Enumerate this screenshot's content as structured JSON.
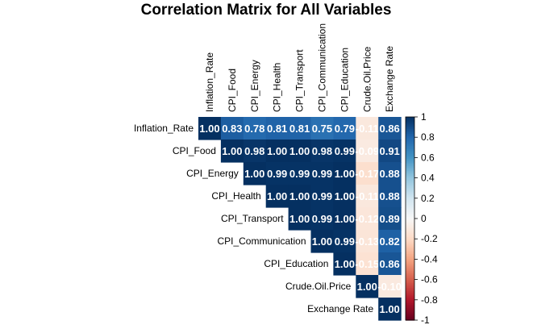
{
  "chart_data": {
    "type": "heatmap",
    "title": "Correlation Matrix for All Variables",
    "variables": [
      "Inflation_Rate",
      "CPI_Food",
      "CPI_Energy",
      "CPI_Health",
      "CPI_Transport",
      "CPI_Communication",
      "CPI_Education",
      "Crude.Oil.Price",
      "Exchange Rate"
    ],
    "col_labels": [
      "Inflation_Rate",
      "CPI_Food",
      "CPI_Energy",
      "CPI_Health",
      "CPI_Transport",
      "CPI_Communication",
      "CPI_Education",
      "Crude.Oil.Price",
      "Exchange Rate"
    ],
    "triangle": "upper",
    "values": [
      [
        1.0,
        0.83,
        0.78,
        0.81,
        0.81,
        0.75,
        0.79,
        -0.11,
        0.86
      ],
      [
        null,
        1.0,
        0.98,
        1.0,
        1.0,
        0.98,
        0.99,
        -0.09,
        0.91
      ],
      [
        null,
        null,
        1.0,
        0.99,
        0.99,
        0.99,
        1.0,
        -0.17,
        0.88
      ],
      [
        null,
        null,
        null,
        1.0,
        1.0,
        0.99,
        1.0,
        -0.11,
        0.88
      ],
      [
        null,
        null,
        null,
        null,
        1.0,
        0.99,
        1.0,
        -0.12,
        0.89
      ],
      [
        null,
        null,
        null,
        null,
        null,
        1.0,
        0.99,
        -0.13,
        0.82
      ],
      [
        null,
        null,
        null,
        null,
        null,
        null,
        1.0,
        -0.15,
        0.86
      ],
      [
        null,
        null,
        null,
        null,
        null,
        null,
        null,
        1.0,
        -0.1
      ],
      [
        null,
        null,
        null,
        null,
        null,
        null,
        null,
        null,
        1.0
      ]
    ],
    "cell_labels": [
      [
        "1.00",
        "0.83",
        "0.78",
        "0.81",
        "0.81",
        "0.75",
        "0.79",
        "-0.11",
        "0.86"
      ],
      [
        null,
        "1.00",
        "0.98",
        "1.00",
        "1.00",
        "0.98",
        "0.99",
        "-0.09",
        "0.91"
      ],
      [
        null,
        null,
        "1.00",
        "0.99",
        "0.99",
        "0.99",
        "1.00",
        "-0.17",
        "0.88"
      ],
      [
        null,
        null,
        null,
        "1.00",
        "1.00",
        "0.99",
        "1.00",
        "-0.11",
        "0.88"
      ],
      [
        null,
        null,
        null,
        null,
        "1.00",
        "0.99",
        "1.00",
        "-0.12",
        "0.89"
      ],
      [
        null,
        null,
        null,
        null,
        null,
        "1.00",
        "0.99",
        "-0.13",
        "0.82"
      ],
      [
        null,
        null,
        null,
        null,
        null,
        null,
        "1.00",
        "-0.15",
        "0.86"
      ],
      [
        null,
        null,
        null,
        null,
        null,
        null,
        null,
        "1.00",
        "-0.10"
      ],
      [
        null,
        null,
        null,
        null,
        null,
        null,
        null,
        null,
        "1.00"
      ]
    ],
    "colorbar": {
      "range": [
        -1,
        1
      ],
      "ticks": [
        "1",
        "0.8",
        "0.6",
        "0.4",
        "0.2",
        "0",
        "-0.2",
        "-0.4",
        "-0.6",
        "-0.8",
        "-1"
      ],
      "colors": {
        "negative": "#67001f",
        "neutral": "#f7f7f7",
        "positive": "#053061"
      }
    }
  }
}
